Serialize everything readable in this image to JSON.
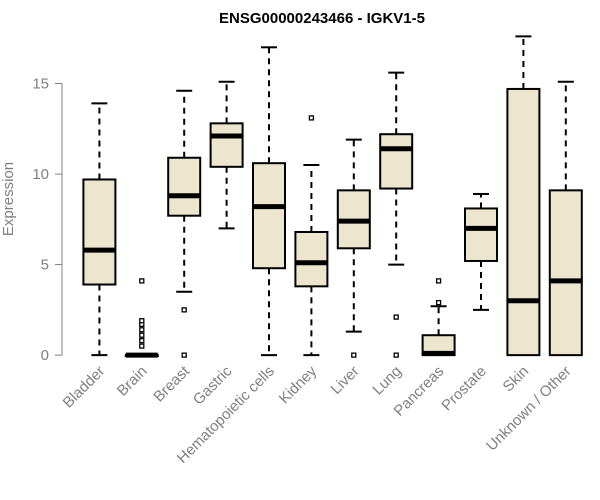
{
  "chart_data": {
    "type": "boxplot",
    "title": "ENSG00000243466 - IGKV1-5",
    "xlabel": "",
    "ylabel": "Expression",
    "ylim": [
      -0.6,
      17.9
    ],
    "yticks": [
      0,
      5,
      10,
      15
    ],
    "grid": false,
    "legend": "none",
    "colors": {
      "box_fill": "#ede6cf",
      "stroke": "#000000",
      "axis": "#808080",
      "text": "#808080"
    },
    "categories": [
      "Bladder",
      "Brain",
      "Breast",
      "Gastric",
      "Hematopoietic cells",
      "Kidney",
      "Liver",
      "Lung",
      "Pancreas",
      "Prostate",
      "Skin",
      "Unknown / Other"
    ],
    "boxes": [
      {
        "whisker_low": 0,
        "q1": 3.9,
        "median": 5.8,
        "q3": 9.7,
        "whisker_high": 13.9,
        "outliers": []
      },
      {
        "whisker_low": 0,
        "q1": 0,
        "median": 0,
        "q3": 0,
        "whisker_high": 0,
        "outliers": [
          0.5,
          0.8,
          1.1,
          1.4,
          1.7,
          1.9,
          4.1
        ]
      },
      {
        "whisker_low": 3.5,
        "q1": 7.7,
        "median": 8.8,
        "q3": 10.9,
        "whisker_high": 14.6,
        "outliers": [
          2.5,
          0
        ]
      },
      {
        "whisker_low": 7.0,
        "q1": 10.4,
        "median": 12.1,
        "q3": 12.8,
        "whisker_high": 15.1,
        "outliers": []
      },
      {
        "whisker_low": 0,
        "q1": 4.8,
        "median": 8.2,
        "q3": 10.6,
        "whisker_high": 17.0,
        "outliers": []
      },
      {
        "whisker_low": 0,
        "q1": 3.8,
        "median": 5.1,
        "q3": 6.8,
        "whisker_high": 10.5,
        "outliers": [
          13.1
        ]
      },
      {
        "whisker_low": 1.3,
        "q1": 5.9,
        "median": 7.4,
        "q3": 9.1,
        "whisker_high": 11.9,
        "outliers": [
          0
        ]
      },
      {
        "whisker_low": 5.0,
        "q1": 9.2,
        "median": 11.4,
        "q3": 12.2,
        "whisker_high": 15.6,
        "outliers": [
          2.1,
          0
        ]
      },
      {
        "whisker_low": 0,
        "q1": 0,
        "median": 0.1,
        "q3": 1.1,
        "whisker_high": 2.7,
        "outliers": [
          2.9,
          4.1
        ]
      },
      {
        "whisker_low": 2.5,
        "q1": 5.2,
        "median": 7.0,
        "q3": 8.1,
        "whisker_high": 8.9,
        "outliers": []
      },
      {
        "whisker_low": 0,
        "q1": 0,
        "median": 3.0,
        "q3": 14.7,
        "whisker_high": 17.6,
        "outliers": []
      },
      {
        "whisker_low": 0,
        "q1": 0,
        "median": 4.1,
        "q3": 9.1,
        "whisker_high": 15.1,
        "outliers": []
      }
    ]
  }
}
